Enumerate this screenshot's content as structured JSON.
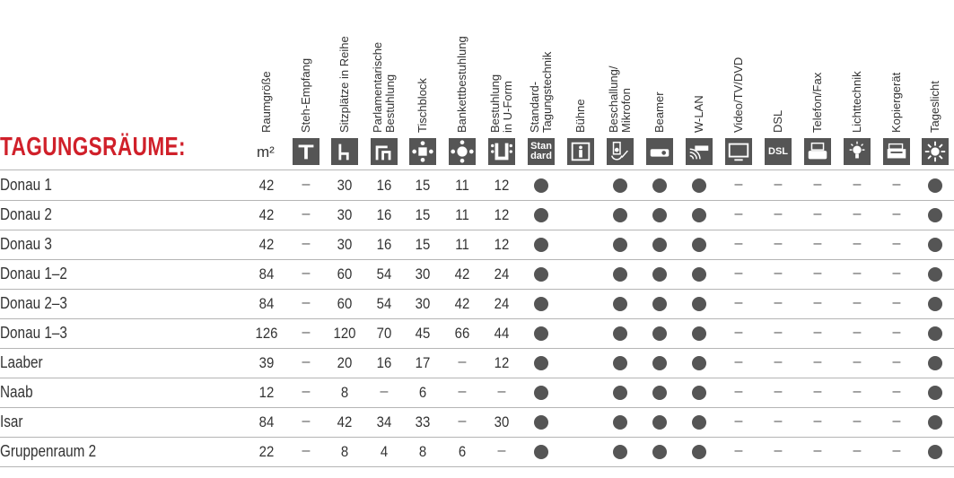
{
  "title": "TAGUNGSRÄUME:",
  "unit": "m²",
  "columns": [
    {
      "key": "raumgroesse",
      "lines": [
        "Raumgröße"
      ],
      "icon": "none"
    },
    {
      "key": "steh",
      "lines": [
        "Steh-Empfang"
      ],
      "icon": "standing-table-icon"
    },
    {
      "key": "reihe",
      "lines": [
        "Sitzplätze in Reihe"
      ],
      "icon": "chair-row-icon"
    },
    {
      "key": "parl",
      "lines": [
        "Parlamentarische",
        "Bestuhlung"
      ],
      "icon": "parliament-seating-icon"
    },
    {
      "key": "tisch",
      "lines": [
        "Tischblock"
      ],
      "icon": "table-block-icon"
    },
    {
      "key": "bankett",
      "lines": [
        "Bankettbestuhlung"
      ],
      "icon": "banquet-icon"
    },
    {
      "key": "uform",
      "lines": [
        "Bestuhlung",
        "in U-Form"
      ],
      "icon": "u-shape-icon"
    },
    {
      "key": "standard",
      "lines": [
        "Standard-",
        "Tagungstechnik"
      ],
      "icon": "standard-icon",
      "icon_text": [
        "Stan",
        "dard"
      ]
    },
    {
      "key": "buehne",
      "lines": [
        "Bühne"
      ],
      "icon": "stage-icon"
    },
    {
      "key": "beschallung",
      "lines": [
        "Beschallung/",
        "Mikrofon"
      ],
      "icon": "speaker-microphone-icon"
    },
    {
      "key": "beamer",
      "lines": [
        "Beamer"
      ],
      "icon": "projector-icon"
    },
    {
      "key": "wlan",
      "lines": [
        "W-LAN"
      ],
      "icon": "wifi-router-icon"
    },
    {
      "key": "video",
      "lines": [
        "Video/TV/DVD"
      ],
      "icon": "tv-icon"
    },
    {
      "key": "dsl",
      "lines": [
        "DSL"
      ],
      "icon": "dsl-icon",
      "icon_text": [
        "DSL"
      ]
    },
    {
      "key": "telefon",
      "lines": [
        "Telefon/Fax"
      ],
      "icon": "fax-icon"
    },
    {
      "key": "licht",
      "lines": [
        "Lichttechnik"
      ],
      "icon": "light-bulb-icon"
    },
    {
      "key": "kopierer",
      "lines": [
        "Kopiergerät"
      ],
      "icon": "copier-icon"
    },
    {
      "key": "tageslicht",
      "lines": [
        "Tageslicht"
      ],
      "icon": "sun-icon"
    }
  ],
  "rows": [
    {
      "name": "Donau 1",
      "cells": [
        "42",
        "–",
        "30",
        "16",
        "15",
        "11",
        "12",
        "●",
        "",
        "●",
        "●",
        "●",
        "–",
        "–",
        "–",
        "–",
        "–",
        "●"
      ]
    },
    {
      "name": "Donau 2",
      "cells": [
        "42",
        "–",
        "30",
        "16",
        "15",
        "11",
        "12",
        "●",
        "",
        "●",
        "●",
        "●",
        "–",
        "–",
        "–",
        "–",
        "–",
        "●"
      ]
    },
    {
      "name": "Donau 3",
      "cells": [
        "42",
        "–",
        "30",
        "16",
        "15",
        "11",
        "12",
        "●",
        "",
        "●",
        "●",
        "●",
        "–",
        "–",
        "–",
        "–",
        "–",
        "●"
      ]
    },
    {
      "name": "Donau 1–2",
      "cells": [
        "84",
        "–",
        "60",
        "54",
        "30",
        "42",
        "24",
        "●",
        "",
        "●",
        "●",
        "●",
        "–",
        "–",
        "–",
        "–",
        "–",
        "●"
      ]
    },
    {
      "name": "Donau 2–3",
      "cells": [
        "84",
        "–",
        "60",
        "54",
        "30",
        "42",
        "24",
        "●",
        "",
        "●",
        "●",
        "●",
        "–",
        "–",
        "–",
        "–",
        "–",
        "●"
      ]
    },
    {
      "name": "Donau 1–3",
      "cells": [
        "126",
        "–",
        "120",
        "70",
        "45",
        "66",
        "44",
        "●",
        "",
        "●",
        "●",
        "●",
        "–",
        "–",
        "–",
        "–",
        "–",
        "●"
      ]
    },
    {
      "name": "Laaber",
      "cells": [
        "39",
        "–",
        "20",
        "16",
        "17",
        "–",
        "12",
        "●",
        "",
        "●",
        "●",
        "●",
        "–",
        "–",
        "–",
        "–",
        "–",
        "●"
      ]
    },
    {
      "name": "Naab",
      "cells": [
        "12",
        "–",
        "8",
        "–",
        "6",
        "–",
        "–",
        "●",
        "",
        "●",
        "●",
        "●",
        "–",
        "–",
        "–",
        "–",
        "–",
        "●"
      ]
    },
    {
      "name": "Isar",
      "cells": [
        "84",
        "–",
        "42",
        "34",
        "33",
        "–",
        "30",
        "●",
        "",
        "●",
        "●",
        "●",
        "–",
        "–",
        "–",
        "–",
        "–",
        "●"
      ]
    },
    {
      "name": "Gruppenraum 2",
      "cells": [
        "22",
        "–",
        "8",
        "4",
        "8",
        "6",
        "–",
        "●",
        "",
        "●",
        "●",
        "●",
        "–",
        "–",
        "–",
        "–",
        "–",
        "●"
      ]
    }
  ]
}
